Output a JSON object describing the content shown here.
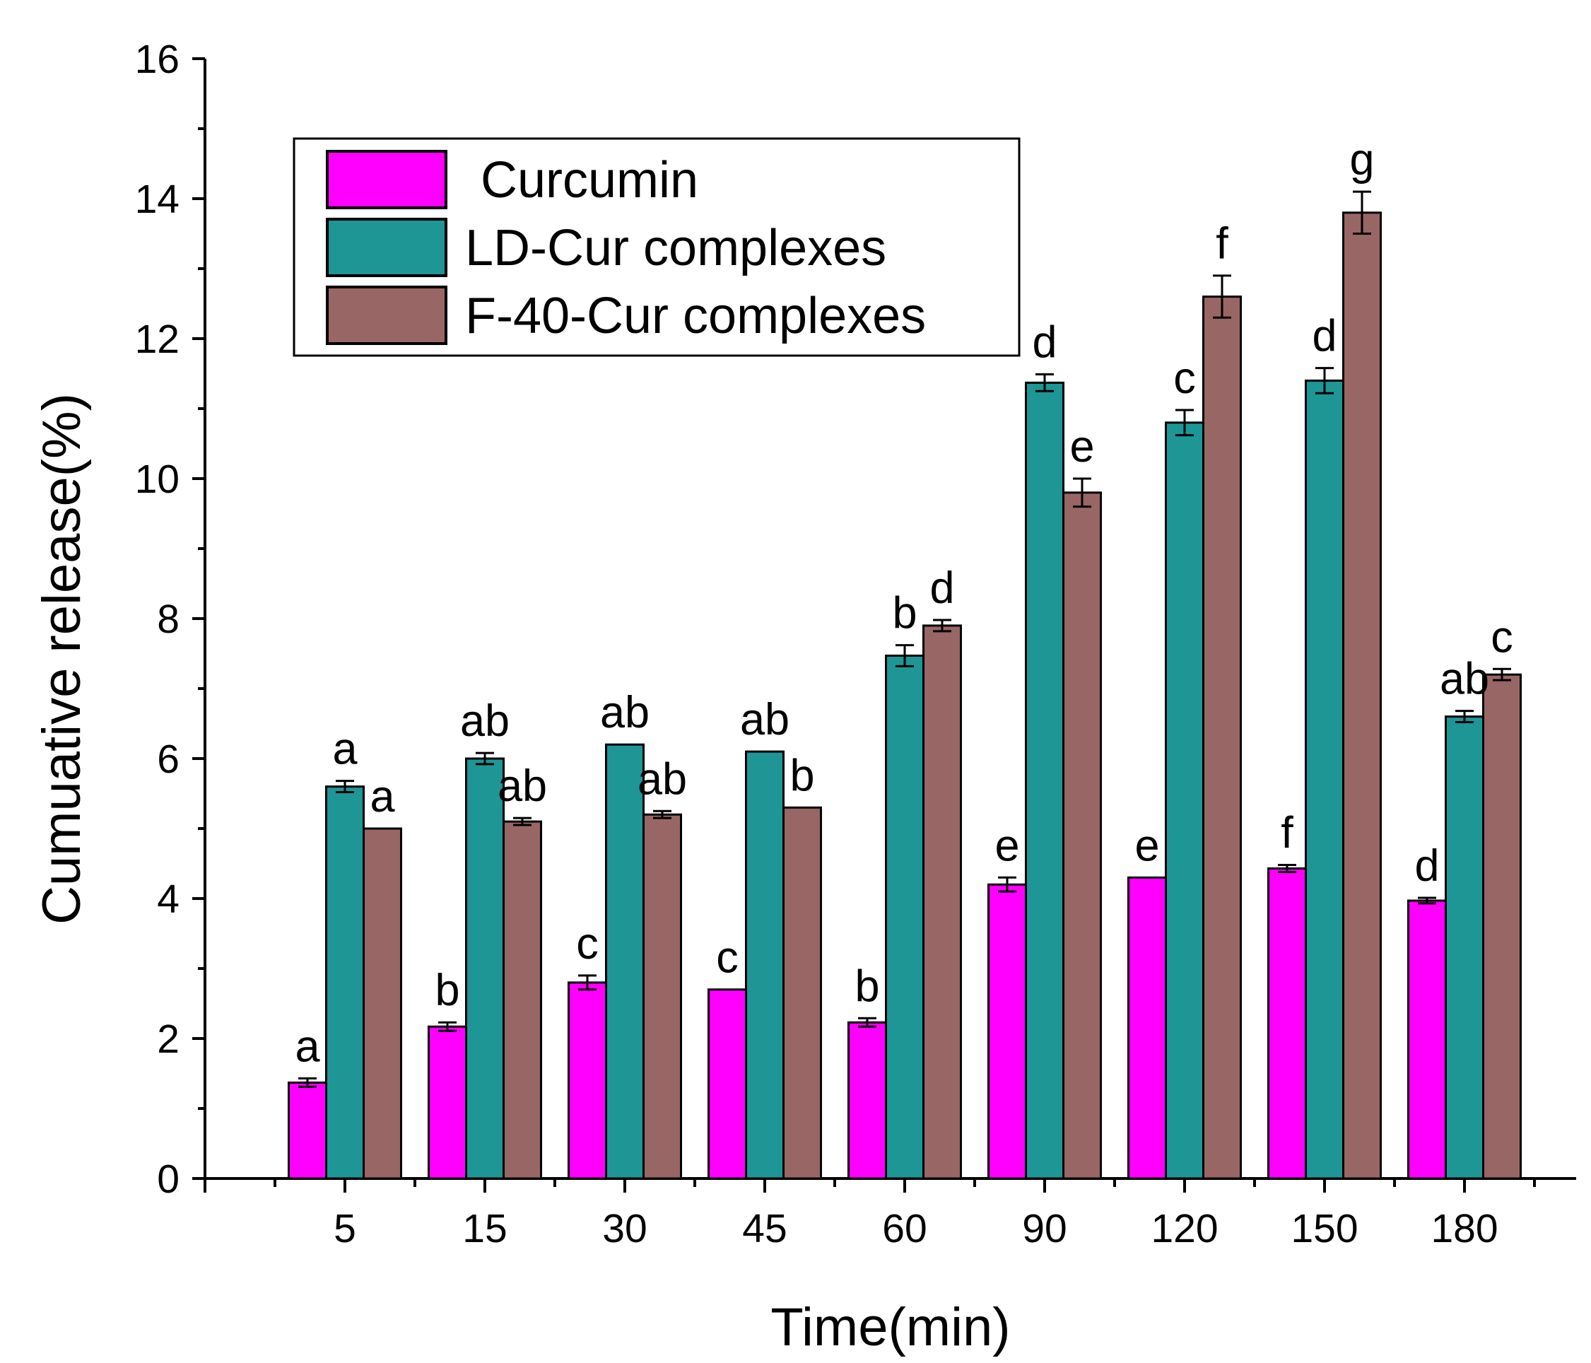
{
  "chart_data": {
    "type": "bar",
    "title": "",
    "xlabel": "Time(min)",
    "ylabel": "Cumuative release(%)",
    "ylim": [
      0,
      16
    ],
    "yticks": [
      0,
      2,
      4,
      6,
      8,
      10,
      12,
      14,
      16
    ],
    "categories": [
      "5",
      "15",
      "30",
      "45",
      "60",
      "90",
      "120",
      "150",
      "180"
    ],
    "grid": false,
    "legend_position": "top-left",
    "series": [
      {
        "name": "Curcumin",
        "color": "#ff00ff",
        "values": [
          1.37,
          2.17,
          2.8,
          2.7,
          2.23,
          4.2,
          4.3,
          4.43,
          3.97
        ],
        "errors": [
          0.06,
          0.06,
          0.1,
          0.0,
          0.06,
          0.1,
          0.0,
          0.05,
          0.04
        ],
        "labels": [
          "a",
          "b",
          "c",
          "c",
          "b",
          "e",
          "e",
          "f",
          "d"
        ]
      },
      {
        "name": "LD-Cur complexes",
        "color": "#1e9696",
        "values": [
          5.6,
          6.0,
          6.2,
          6.1,
          7.47,
          11.37,
          10.8,
          11.4,
          6.6
        ],
        "errors": [
          0.08,
          0.08,
          0.0,
          0.0,
          0.15,
          0.12,
          0.18,
          0.18,
          0.08
        ],
        "labels": [
          "a",
          "ab",
          "ab",
          "ab",
          "b",
          "d",
          "c",
          "d",
          "ab"
        ]
      },
      {
        "name": "F-40-Cur complexes",
        "color": "#996666",
        "values": [
          5.0,
          5.1,
          5.2,
          5.3,
          7.9,
          9.8,
          12.6,
          13.8,
          7.2
        ],
        "errors": [
          0.0,
          0.05,
          0.05,
          0.0,
          0.08,
          0.2,
          0.3,
          0.3,
          0.08
        ],
        "labels": [
          "a",
          "ab",
          "ab",
          "b",
          "d",
          "e",
          "f",
          "g",
          "c"
        ]
      }
    ]
  }
}
